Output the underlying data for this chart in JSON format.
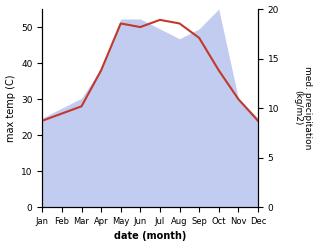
{
  "months": [
    "Jan",
    "Feb",
    "Mar",
    "Apr",
    "May",
    "Jun",
    "Jul",
    "Aug",
    "Sep",
    "Oct",
    "Nov",
    "Dec"
  ],
  "temp": [
    24,
    26,
    28,
    38,
    51,
    50,
    52,
    51,
    47,
    38,
    30,
    24
  ],
  "precip": [
    9,
    10,
    11,
    14,
    19,
    19,
    18,
    17,
    18,
    20,
    11,
    9
  ],
  "temp_color": "#c0392b",
  "precip_fill_color": "#b8c4ee",
  "ylim_temp": [
    0,
    55
  ],
  "ylim_precip": [
    0,
    20
  ],
  "xlabel": "date (month)",
  "ylabel_left": "max temp (C)",
  "ylabel_right": "med. precipitation\n(kg/m2)",
  "fig_width": 3.18,
  "fig_height": 2.47
}
